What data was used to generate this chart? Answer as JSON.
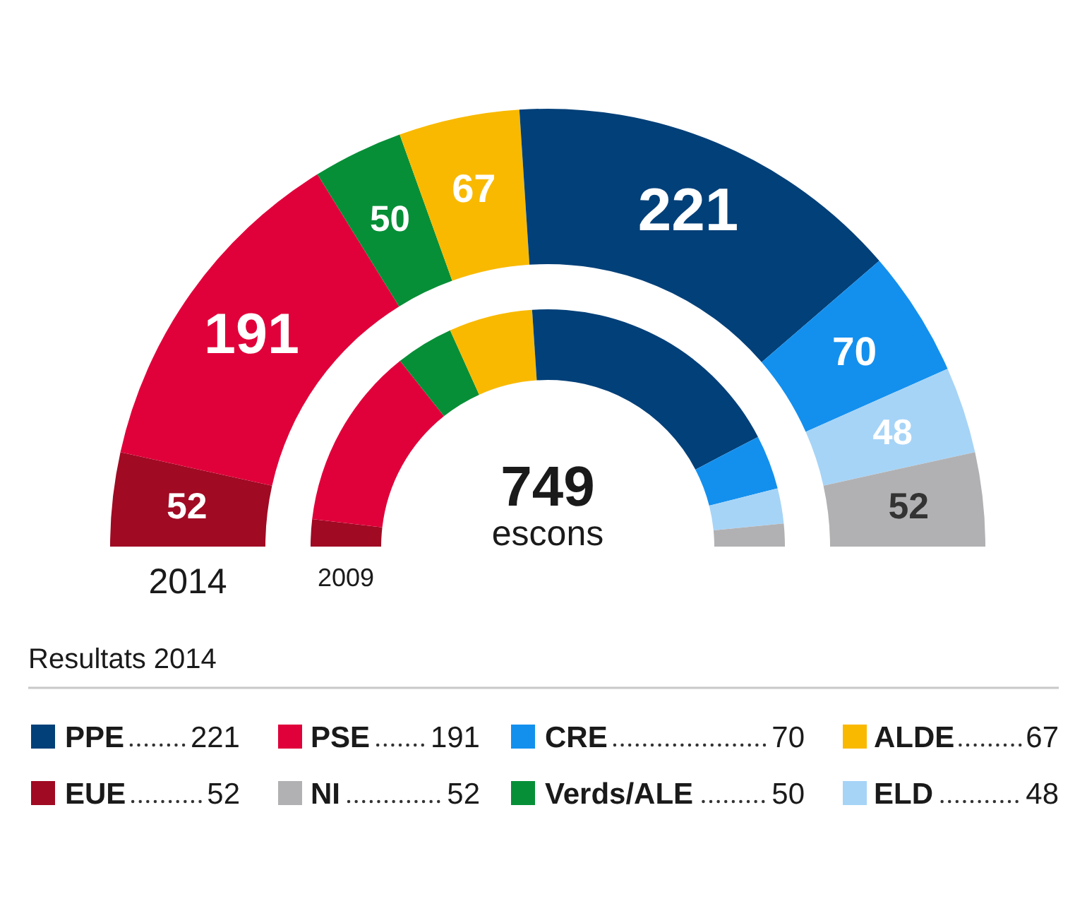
{
  "chart_data": {
    "type": "donut",
    "categories": [
      "EUE",
      "PSE",
      "Verds/ALE",
      "ALDE",
      "PPE",
      "CRE",
      "ELD",
      "NI"
    ],
    "colors": [
      "#a00a23",
      "#e0003a",
      "#078f37",
      "#f9b900",
      "#024079",
      "#1390ee",
      "#a6d4f7",
      "#b1b1b3"
    ],
    "series": [
      {
        "name": "2014",
        "values": [
          52,
          191,
          50,
          67,
          221,
          70,
          48,
          52
        ],
        "value_labels": [
          "52",
          "191",
          "50",
          "67",
          "221",
          "70",
          "48",
          "52"
        ]
      },
      {
        "name": "2009",
        "values": [
          3.7,
          24.9,
          7.9,
          11.4,
          36.8,
          7.4,
          4.8,
          3.1
        ]
      }
    ],
    "annotations": [
      "749",
      "escons",
      "221",
      "191",
      "70",
      "67",
      "52",
      "52",
      "50",
      "48"
    ],
    "legend": "bottom",
    "legend_title": "Resultats 2014"
  }
}
